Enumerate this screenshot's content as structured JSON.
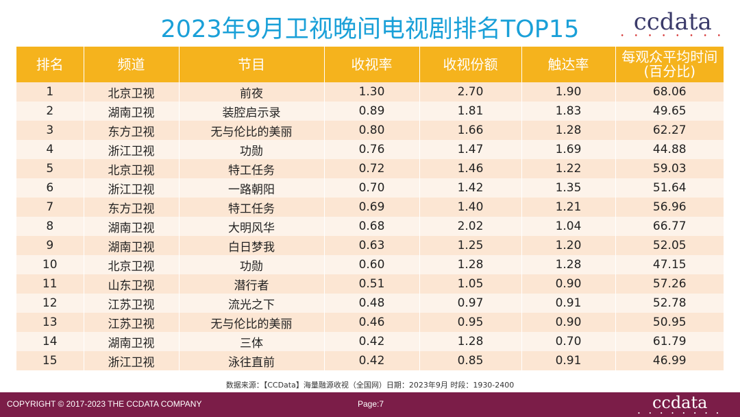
{
  "title": "2023年9月卫视晚间电视剧排名TOP15",
  "logo": {
    "word": "ccdata",
    "dots": "• • • • • • • •"
  },
  "table": {
    "headers": [
      "排名",
      "频道",
      "节目",
      "收视率",
      "收视份额",
      "触达率",
      "每观众平均时间\n(百分比)"
    ],
    "rows": [
      [
        "1",
        "北京卫视",
        "前夜",
        "1.30",
        "2.70",
        "1.90",
        "68.06"
      ],
      [
        "2",
        "湖南卫视",
        "装腔启示录",
        "0.89",
        "1.81",
        "1.83",
        "49.65"
      ],
      [
        "3",
        "东方卫视",
        "无与伦比的美丽",
        "0.80",
        "1.66",
        "1.28",
        "62.27"
      ],
      [
        "4",
        "浙江卫视",
        "功勋",
        "0.76",
        "1.47",
        "1.69",
        "44.88"
      ],
      [
        "5",
        "北京卫视",
        "特工任务",
        "0.72",
        "1.46",
        "1.22",
        "59.03"
      ],
      [
        "6",
        "浙江卫视",
        "一路朝阳",
        "0.70",
        "1.42",
        "1.35",
        "51.64"
      ],
      [
        "7",
        "东方卫视",
        "特工任务",
        "0.69",
        "1.40",
        "1.21",
        "56.96"
      ],
      [
        "8",
        "湖南卫视",
        "大明风华",
        "0.68",
        "2.02",
        "1.04",
        "66.77"
      ],
      [
        "9",
        "湖南卫视",
        "白日梦我",
        "0.63",
        "1.25",
        "1.20",
        "52.05"
      ],
      [
        "10",
        "北京卫视",
        "功勋",
        "0.60",
        "1.28",
        "1.28",
        "47.15"
      ],
      [
        "11",
        "山东卫视",
        "潜行者",
        "0.51",
        "1.05",
        "0.90",
        "57.26"
      ],
      [
        "12",
        "江苏卫视",
        "流光之下",
        "0.48",
        "0.97",
        "0.91",
        "52.78"
      ],
      [
        "13",
        "江苏卫视",
        "无与伦比的美丽",
        "0.46",
        "0.95",
        "0.90",
        "50.95"
      ],
      [
        "14",
        "湖南卫视",
        "三体",
        "0.42",
        "1.28",
        "0.70",
        "61.79"
      ],
      [
        "15",
        "浙江卫视",
        "泳往直前",
        "0.42",
        "0.85",
        "0.91",
        "46.99"
      ]
    ]
  },
  "source": "数据来源：【CCData】海量融源收视（全国网）日期：2023年9月  时段：1930-2400",
  "footer": {
    "copyright": "COPYRIGHT © 2017-2023 THE CCDATA COMPANY",
    "page": "Page:7",
    "logo_word": "ccdata",
    "logo_dots": "• • • • • • • •"
  },
  "colors": {
    "title": "#1aa0d8",
    "header_bg": "#f5b31d",
    "row_odd": "#fce6d3",
    "row_even": "#fdf3ea",
    "footer_bg": "#7b1d48"
  }
}
